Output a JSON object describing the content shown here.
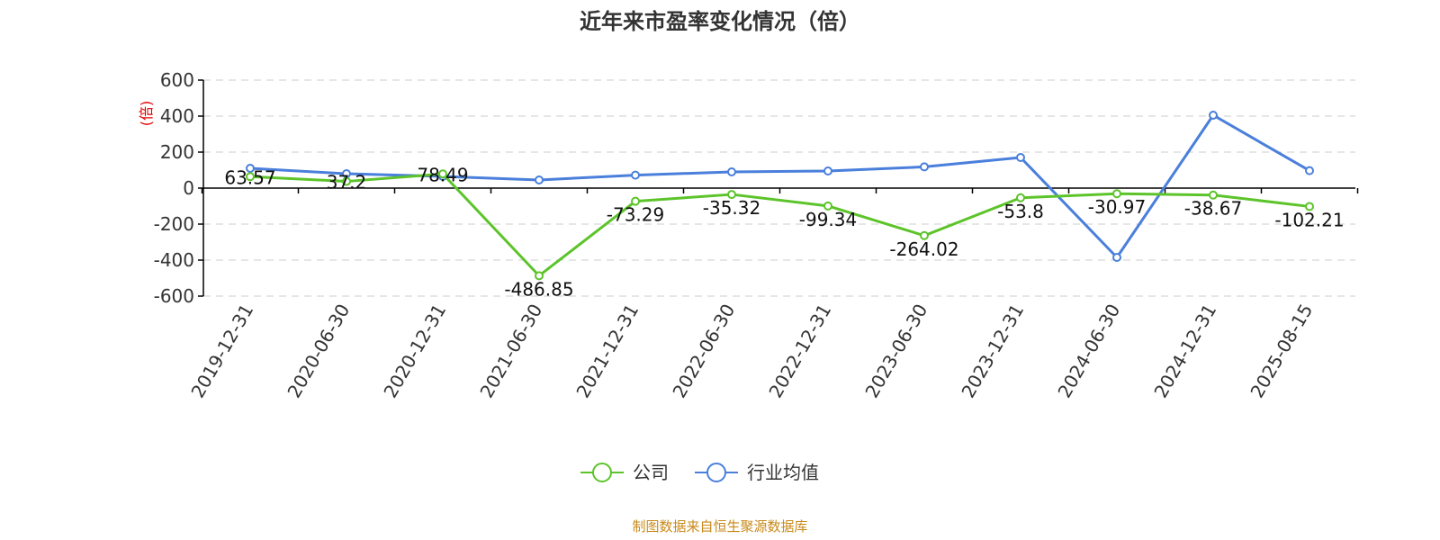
{
  "chart_data": {
    "type": "line",
    "title": "近年来市盈率变化情况（倍）",
    "ylabel": "(倍)",
    "xlabel": "",
    "ylim": [
      -600,
      600
    ],
    "yticks": [
      600,
      400,
      200,
      0,
      -200,
      -400,
      -600
    ],
    "categories": [
      "2019-12-31",
      "2020-06-30",
      "2020-12-31",
      "2021-06-30",
      "2021-12-31",
      "2022-06-30",
      "2022-12-31",
      "2023-06-30",
      "2023-12-31",
      "2024-06-30",
      "2024-12-31",
      "2025-08-15"
    ],
    "series": [
      {
        "name": "公司",
        "color": "#5cc42a",
        "values": [
          63.57,
          37.2,
          78.49,
          -486.85,
          -73.29,
          -35.32,
          -99.34,
          -264.02,
          -53.8,
          -30.97,
          -38.67,
          -102.21
        ],
        "labels": [
          "63.57",
          "37.2",
          "78.49",
          "-486.85",
          "-73.29",
          "-35.32",
          "-99.34",
          "-264.02",
          "-53.8",
          "-30.97",
          "-38.67",
          "-102.21"
        ]
      },
      {
        "name": "行业均值",
        "color": "#4a7fdb",
        "values": [
          110,
          80,
          65,
          45,
          72,
          90,
          95,
          118,
          170,
          -385,
          405,
          97
        ]
      }
    ],
    "grid": true,
    "legend_position": "bottom-center",
    "source": "制图数据来自恒生聚源数据库"
  }
}
